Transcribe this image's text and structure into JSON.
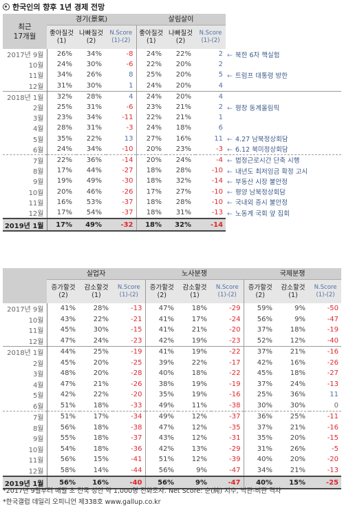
{
  "title": "한국인의 향후 1년 경제 전망",
  "table1": {
    "recent_label": [
      "최근",
      "17개월"
    ],
    "groups": [
      "경기(景氣)",
      "살림살이"
    ],
    "subheaders": [
      [
        "좋아질것",
        "(1)"
      ],
      [
        "나빠질것",
        "(2)"
      ],
      [
        "N.Score",
        "(1)-(2)"
      ],
      [
        "좋아질것",
        "(1)"
      ],
      [
        "나빠질것",
        "(2)"
      ],
      [
        "N.Score",
        "(1)-(2)"
      ]
    ],
    "rows": [
      [
        "2017년 9월",
        "26%",
        "34%",
        "-8",
        "24%",
        "22%",
        "2",
        "북한 6차 핵실험"
      ],
      [
        "10월",
        "24%",
        "30%",
        "-6",
        "22%",
        "20%",
        "2",
        ""
      ],
      [
        "11월",
        "34%",
        "26%",
        "8",
        "25%",
        "20%",
        "5",
        "트럼프 대통령 방한"
      ],
      [
        "12월",
        "31%",
        "30%",
        "1",
        "24%",
        "20%",
        "4",
        ""
      ],
      [
        "2018년 1월",
        "32%",
        "28%",
        "4",
        "24%",
        "20%",
        "4",
        ""
      ],
      [
        "2월",
        "25%",
        "31%",
        "-6",
        "23%",
        "21%",
        "2",
        "평창 동계올림픽"
      ],
      [
        "3월",
        "23%",
        "34%",
        "-11",
        "22%",
        "21%",
        "1",
        ""
      ],
      [
        "4월",
        "28%",
        "31%",
        "-3",
        "24%",
        "18%",
        "6",
        ""
      ],
      [
        "5월",
        "35%",
        "22%",
        "13",
        "27%",
        "16%",
        "11",
        "4.27 남북정상회담"
      ],
      [
        "6월",
        "24%",
        "34%",
        "-10",
        "20%",
        "23%",
        "-3",
        "6.12 북미정상회담"
      ],
      [
        "7월",
        "22%",
        "36%",
        "-14",
        "20%",
        "24%",
        "-4",
        "법정근로시간 단축 시행"
      ],
      [
        "8월",
        "17%",
        "44%",
        "-27",
        "18%",
        "28%",
        "-10",
        "내년도 최저임금 확정 고시"
      ],
      [
        "9월",
        "19%",
        "49%",
        "-30",
        "18%",
        "32%",
        "-14",
        "부동산 시장 불안정"
      ],
      [
        "10월",
        "20%",
        "46%",
        "-26",
        "17%",
        "27%",
        "-10",
        "평양 남북정상회담"
      ],
      [
        "11월",
        "16%",
        "53%",
        "-37",
        "18%",
        "28%",
        "-10",
        "국내외 증시 불안정"
      ],
      [
        "12월",
        "17%",
        "54%",
        "-37",
        "18%",
        "31%",
        "-13",
        "노동계 국회 앞 집회"
      ]
    ],
    "total": [
      "2019년 1월",
      "17%",
      "49%",
      "-32",
      "18%",
      "32%",
      "-14"
    ]
  },
  "table2": {
    "groups": [
      "실업자",
      "노사분쟁",
      "국제분쟁"
    ],
    "subheaders": [
      [
        "증가할것",
        "(2)"
      ],
      [
        "감소할것",
        "(1)"
      ],
      [
        "N.Score",
        "(1)-(2)"
      ],
      [
        "증가할것",
        "(2)"
      ],
      [
        "감소할것",
        "(1)"
      ],
      [
        "N.Score",
        "(1)-(2)"
      ],
      [
        "증가할것",
        "(2)"
      ],
      [
        "감소할것",
        "(1)"
      ],
      [
        "N.Score",
        "(1)-(2)"
      ]
    ],
    "rows": [
      [
        "2017년 9월",
        "41%",
        "28%",
        "-13",
        "47%",
        "18%",
        "-29",
        "59%",
        "9%",
        "-50"
      ],
      [
        "10월",
        "43%",
        "22%",
        "-21",
        "41%",
        "17%",
        "-24",
        "56%",
        "9%",
        "-47"
      ],
      [
        "11월",
        "45%",
        "30%",
        "-15",
        "41%",
        "21%",
        "-20",
        "37%",
        "18%",
        "-19"
      ],
      [
        "12월",
        "47%",
        "24%",
        "-23",
        "42%",
        "19%",
        "-23",
        "52%",
        "12%",
        "-40"
      ],
      [
        "2018년 1월",
        "44%",
        "25%",
        "-19",
        "41%",
        "19%",
        "-22",
        "37%",
        "21%",
        "-16"
      ],
      [
        "2월",
        "45%",
        "20%",
        "-25",
        "39%",
        "22%",
        "-17",
        "42%",
        "16%",
        "-26"
      ],
      [
        "3월",
        "48%",
        "20%",
        "-28",
        "40%",
        "18%",
        "-22",
        "45%",
        "18%",
        "-27"
      ],
      [
        "4월",
        "47%",
        "21%",
        "-26",
        "38%",
        "19%",
        "-19",
        "37%",
        "24%",
        "-13"
      ],
      [
        "5월",
        "42%",
        "22%",
        "-20",
        "35%",
        "19%",
        "-16",
        "25%",
        "36%",
        "11"
      ],
      [
        "6월",
        "51%",
        "18%",
        "-33",
        "49%",
        "11%",
        "-38",
        "30%",
        "30%",
        "0"
      ],
      [
        "7월",
        "51%",
        "17%",
        "-34",
        "49%",
        "12%",
        "-37",
        "36%",
        "25%",
        "-11"
      ],
      [
        "8월",
        "56%",
        "18%",
        "-38",
        "47%",
        "12%",
        "-35",
        "37%",
        "21%",
        "-16"
      ],
      [
        "9월",
        "55%",
        "18%",
        "-37",
        "43%",
        "12%",
        "-31",
        "35%",
        "20%",
        "-15"
      ],
      [
        "10월",
        "54%",
        "18%",
        "-36",
        "42%",
        "13%",
        "-29",
        "31%",
        "26%",
        "-5"
      ],
      [
        "11월",
        "56%",
        "15%",
        "-41",
        "51%",
        "12%",
        "-39",
        "40%",
        "20%",
        "-20"
      ],
      [
        "12월",
        "58%",
        "14%",
        "-44",
        "56%",
        "9%",
        "-47",
        "34%",
        "21%",
        "-13"
      ]
    ],
    "total": [
      "2019년 1월",
      "56%",
      "16%",
      "-40",
      "56%",
      "9%",
      "-47",
      "40%",
      "15%",
      "-25"
    ]
  },
  "footnotes": [
    "*2017년 9월부터 매월 초 전국 성인 약 1,000명 전화조사. Net Score: 순(純) 지수, 낙관-비관 격차",
    "*한국갤럽 데일리 오피니언 제338호 www.gallup.co.kr"
  ]
}
